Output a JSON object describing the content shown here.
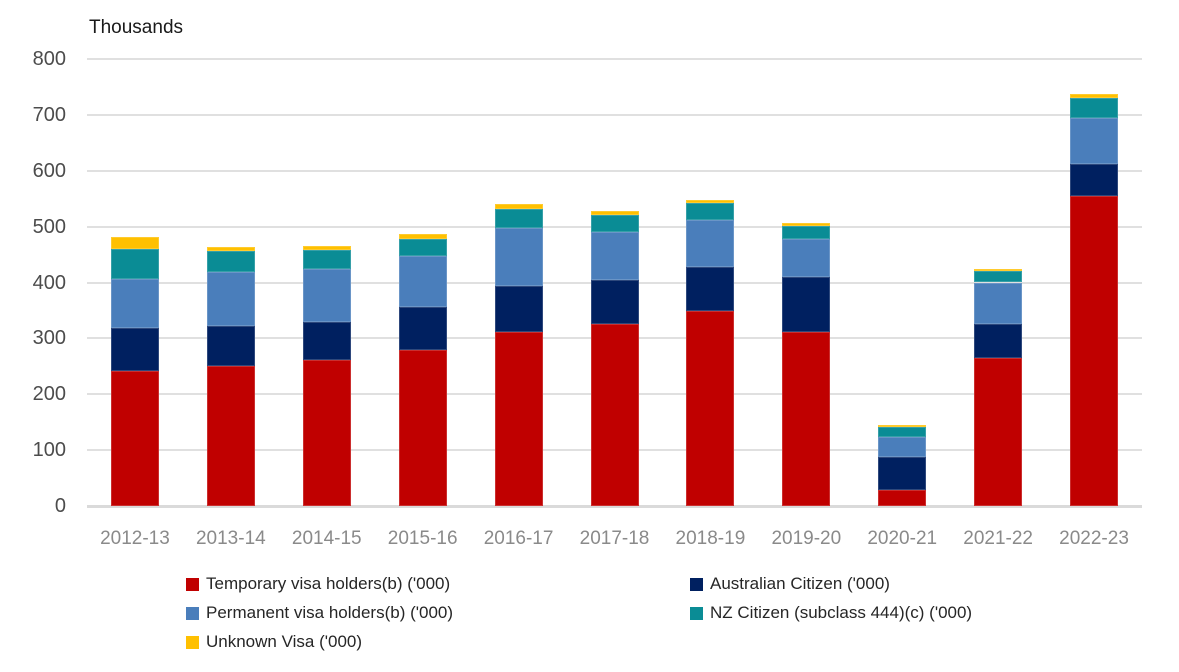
{
  "chart_data": {
    "type": "bar",
    "stacked": true,
    "axis_title": "Thousands",
    "categories": [
      "2012-13",
      "2013-14",
      "2014-15",
      "2015-16",
      "2016-17",
      "2017-18",
      "2018-19",
      "2019-20",
      "2020-21",
      "2021-22",
      "2022-23"
    ],
    "series": [
      {
        "name": "Temporary visa holders(b) ('000)",
        "color": "#c00000",
        "values": [
          242,
          250,
          261,
          279,
          312,
          326,
          349,
          311,
          28,
          264,
          554
        ]
      },
      {
        "name": "Australian Citizen ('000)",
        "color": "#002060",
        "values": [
          77,
          72,
          69,
          77,
          81,
          79,
          78,
          98,
          60,
          61,
          58
        ]
      },
      {
        "name": "Permanent visa holders(b) ('000)",
        "color": "#4a7ebb",
        "values": [
          87,
          96,
          94,
          92,
          105,
          85,
          85,
          69,
          36,
          75,
          82
        ]
      },
      {
        "name": "NZ Citizen (subclass 444)(c) ('000)",
        "color": "#0a8c95",
        "values": [
          54,
          38,
          34,
          30,
          33,
          31,
          30,
          23,
          18,
          21,
          37
        ]
      },
      {
        "name": "Unknown Visa ('000)",
        "color": "#ffc000",
        "values": [
          22,
          8,
          7,
          9,
          10,
          7,
          6,
          5,
          3,
          4,
          6
        ]
      }
    ],
    "stack_order_bottom_to_top": [
      "Temporary visa holders(b) ('000)",
      "Australian Citizen ('000)",
      "Permanent visa holders(b) ('000)",
      "NZ Citizen (subclass 444)(c) ('000)",
      "Unknown Visa ('000)"
    ],
    "totals": [
      482,
      464,
      465,
      487,
      541,
      528,
      548,
      506,
      145,
      425,
      737
    ],
    "yticks": [
      0,
      100,
      200,
      300,
      400,
      500,
      600,
      700,
      800
    ],
    "ylim": [
      0,
      800
    ],
    "grid": true,
    "gridline_color": "#e0e0e0",
    "legend_position": "bottom",
    "legend_columns": 2
  }
}
